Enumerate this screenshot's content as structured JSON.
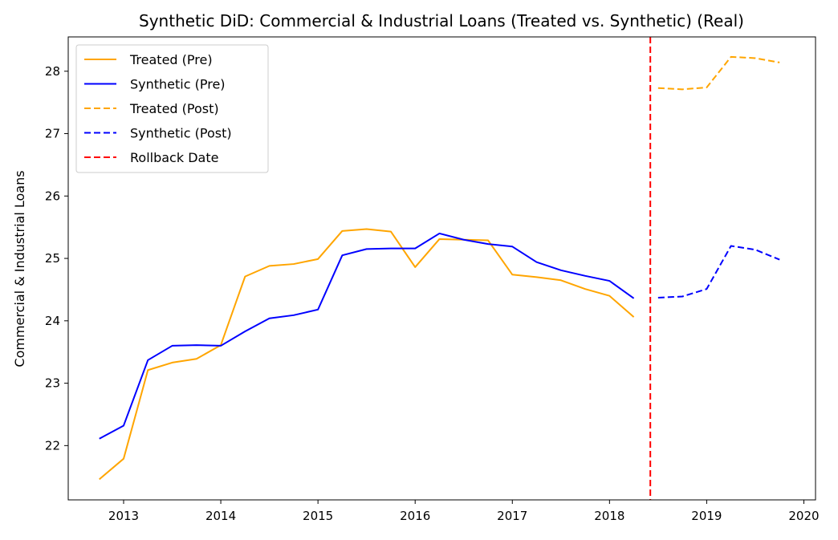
{
  "chart_data": {
    "type": "line",
    "title": "Synthetic DiD: Commercial & Industrial Loans (Treated vs. Synthetic) (Real)",
    "xlabel": "",
    "ylabel": "Commercial & Industrial Loans",
    "xlim": [
      2012.43,
      2020.12
    ],
    "ylim": [
      21.13,
      28.55
    ],
    "xticks": [
      2013,
      2014,
      2015,
      2016,
      2017,
      2018,
      2019,
      2020
    ],
    "yticks": [
      22,
      23,
      24,
      25,
      26,
      27,
      28
    ],
    "grid": false,
    "legend_position": "top-left",
    "rollback_date": 2018.42,
    "series": [
      {
        "name": "Treated (Pre)",
        "color": "#ffa500",
        "dash": "solid",
        "x": [
          2012.75,
          2013.0,
          2013.25,
          2013.5,
          2013.75,
          2014.0,
          2014.25,
          2014.5,
          2014.75,
          2015.0,
          2015.25,
          2015.5,
          2015.75,
          2016.0,
          2016.25,
          2016.5,
          2016.75,
          2017.0,
          2017.25,
          2017.5,
          2017.75,
          2018.0,
          2018.25
        ],
        "y": [
          21.46,
          21.79,
          23.21,
          23.33,
          23.39,
          23.61,
          24.71,
          24.88,
          24.91,
          24.99,
          25.44,
          25.47,
          25.43,
          24.86,
          25.31,
          25.3,
          25.29,
          24.74,
          24.7,
          24.65,
          24.51,
          24.4,
          24.06
        ]
      },
      {
        "name": "Synthetic (Pre)",
        "color": "#0000ff",
        "dash": "solid",
        "x": [
          2012.75,
          2013.0,
          2013.25,
          2013.5,
          2013.75,
          2014.0,
          2014.25,
          2014.5,
          2014.75,
          2015.0,
          2015.25,
          2015.5,
          2015.75,
          2016.0,
          2016.25,
          2016.5,
          2016.75,
          2017.0,
          2017.25,
          2017.5,
          2017.75,
          2018.0,
          2018.25
        ],
        "y": [
          22.11,
          22.32,
          23.37,
          23.6,
          23.61,
          23.6,
          23.83,
          24.04,
          24.09,
          24.18,
          25.05,
          25.15,
          25.16,
          25.16,
          25.4,
          25.3,
          25.23,
          25.19,
          24.94,
          24.81,
          24.72,
          24.64,
          24.36
        ]
      },
      {
        "name": "Treated (Post)",
        "color": "#ffa500",
        "dash": "dashed",
        "x": [
          2018.5,
          2018.75,
          2019.0,
          2019.25,
          2019.5,
          2019.75
        ],
        "y": [
          27.73,
          27.71,
          27.74,
          28.23,
          28.21,
          28.14
        ]
      },
      {
        "name": "Synthetic (Post)",
        "color": "#0000ff",
        "dash": "dashed",
        "x": [
          2018.5,
          2018.75,
          2019.0,
          2019.25,
          2019.5,
          2019.75
        ],
        "y": [
          24.37,
          24.39,
          24.51,
          25.2,
          25.14,
          24.98
        ]
      }
    ],
    "vline": {
      "name": "Rollback Date",
      "color": "#ff0000",
      "dash": "dashed",
      "x": 2018.42
    }
  }
}
